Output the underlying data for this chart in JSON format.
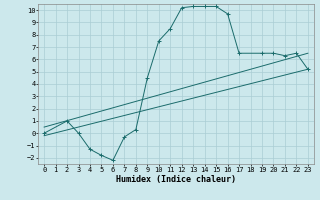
{
  "xlabel": "Humidex (Indice chaleur)",
  "ylabel": "",
  "xlim": [
    -0.5,
    23.5
  ],
  "ylim": [
    -2.5,
    10.5
  ],
  "xticks": [
    0,
    1,
    2,
    3,
    4,
    5,
    6,
    7,
    8,
    9,
    10,
    11,
    12,
    13,
    14,
    15,
    16,
    17,
    18,
    19,
    20,
    21,
    22,
    23
  ],
  "yticks": [
    -2,
    -1,
    0,
    1,
    2,
    3,
    4,
    5,
    6,
    7,
    8,
    9,
    10
  ],
  "bg_color": "#cce8ec",
  "grid_color": "#aacdd4",
  "line_color": "#1a6b6b",
  "line1": {
    "x": [
      0,
      2,
      3,
      4,
      5,
      6,
      7,
      8,
      9,
      10,
      11,
      12,
      13,
      14,
      15,
      16,
      17,
      19,
      20,
      21,
      22,
      23
    ],
    "y": [
      0,
      1,
      0,
      -1.3,
      -1.8,
      -2.2,
      -0.3,
      0.3,
      4.5,
      7.5,
      8.5,
      10.2,
      10.3,
      10.3,
      10.3,
      9.7,
      6.5,
      6.5,
      6.5,
      6.3,
      6.5,
      5.2
    ]
  },
  "line2": {
    "x": [
      0,
      23
    ],
    "y": [
      0.5,
      6.5
    ]
  },
  "line3": {
    "x": [
      0,
      23
    ],
    "y": [
      -0.2,
      5.2
    ]
  },
  "fontsize_tick": 5,
  "fontsize_label": 6
}
